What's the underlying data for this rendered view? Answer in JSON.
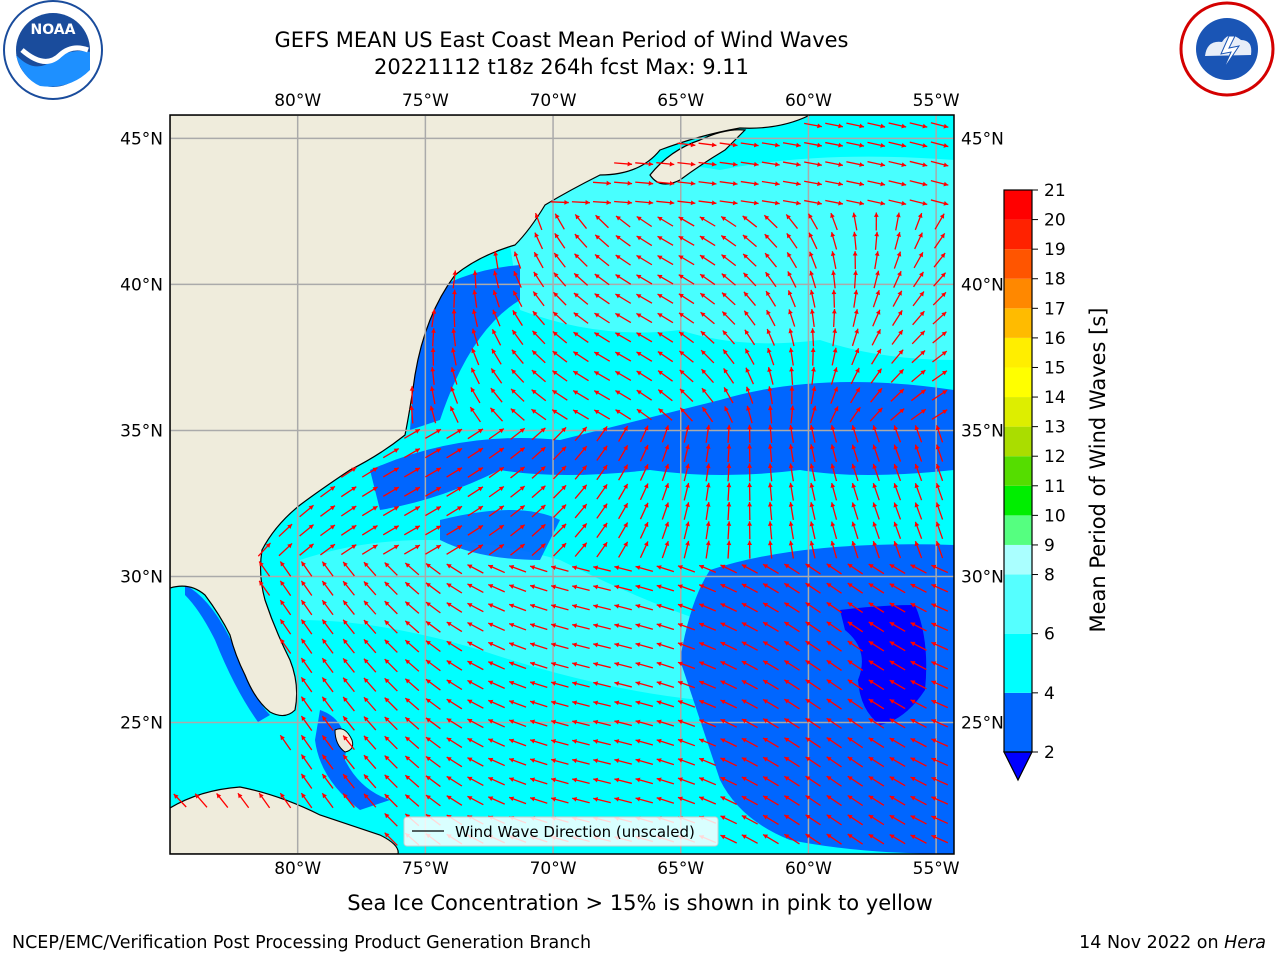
{
  "title": {
    "line1": "GEFS MEAN US East Coast Mean Period of Wind Waves",
    "line2": "20221112 t18z 264h fcst   Max: 9.11"
  },
  "map": {
    "lon_labels": [
      "80°W",
      "75°W",
      "70°W",
      "65°W",
      "60°W",
      "55°W"
    ],
    "lon_values": [
      -80,
      -75,
      -70,
      -65,
      -60,
      -55
    ],
    "lat_labels": [
      "45°N",
      "40°N",
      "35°N",
      "30°N",
      "25°N"
    ],
    "lat_values": [
      45,
      40,
      35,
      30,
      25
    ],
    "extent": {
      "lon_min": -85,
      "lon_max": -54.3,
      "lat_min": 20.5,
      "lat_max": 45.8
    },
    "arrow_color": "#ff0000",
    "land_color": "#efecdc"
  },
  "legend": {
    "label": "Wind Wave Direction (unscaled)"
  },
  "colorbar": {
    "title": "Mean Period of Wind Waves [s]",
    "ticks": [
      "2",
      "4",
      "6",
      "8",
      "9",
      "10",
      "11",
      "12",
      "13",
      "14",
      "15",
      "16",
      "17",
      "18",
      "19",
      "20",
      "21"
    ],
    "bins": [
      {
        "from": 2,
        "to": 4,
        "color": "#0066ff"
      },
      {
        "from": 4,
        "to": 6,
        "color": "#00ffff"
      },
      {
        "from": 6,
        "to": 8,
        "color": "#55ffff"
      },
      {
        "from": 8,
        "to": 9,
        "color": "#aaffff"
      },
      {
        "from": 9,
        "to": 10,
        "color": "#55ff80"
      },
      {
        "from": 10,
        "to": 11,
        "color": "#00ee00"
      },
      {
        "from": 11,
        "to": 12,
        "color": "#55dd00"
      },
      {
        "from": 12,
        "to": 13,
        "color": "#aadd00"
      },
      {
        "from": 13,
        "to": 14,
        "color": "#ddee00"
      },
      {
        "from": 14,
        "to": 15,
        "color": "#ffff00"
      },
      {
        "from": 15,
        "to": 16,
        "color": "#ffee00"
      },
      {
        "from": 16,
        "to": 17,
        "color": "#ffbb00"
      },
      {
        "from": 17,
        "to": 18,
        "color": "#ff8800"
      },
      {
        "from": 18,
        "to": 19,
        "color": "#ff5500"
      },
      {
        "from": 19,
        "to": 20,
        "color": "#ff2200"
      },
      {
        "from": 20,
        "to": 21,
        "color": "#ff0000"
      }
    ],
    "under_color": "#0000ff"
  },
  "footnote": "Sea Ice Concentration > 15% is shown in pink to yellow",
  "credits": {
    "left": "NCEP/EMC/Verification Post Processing Product Generation Branch",
    "right_date": "14 Nov 2022 on ",
    "right_host": "Hera"
  }
}
